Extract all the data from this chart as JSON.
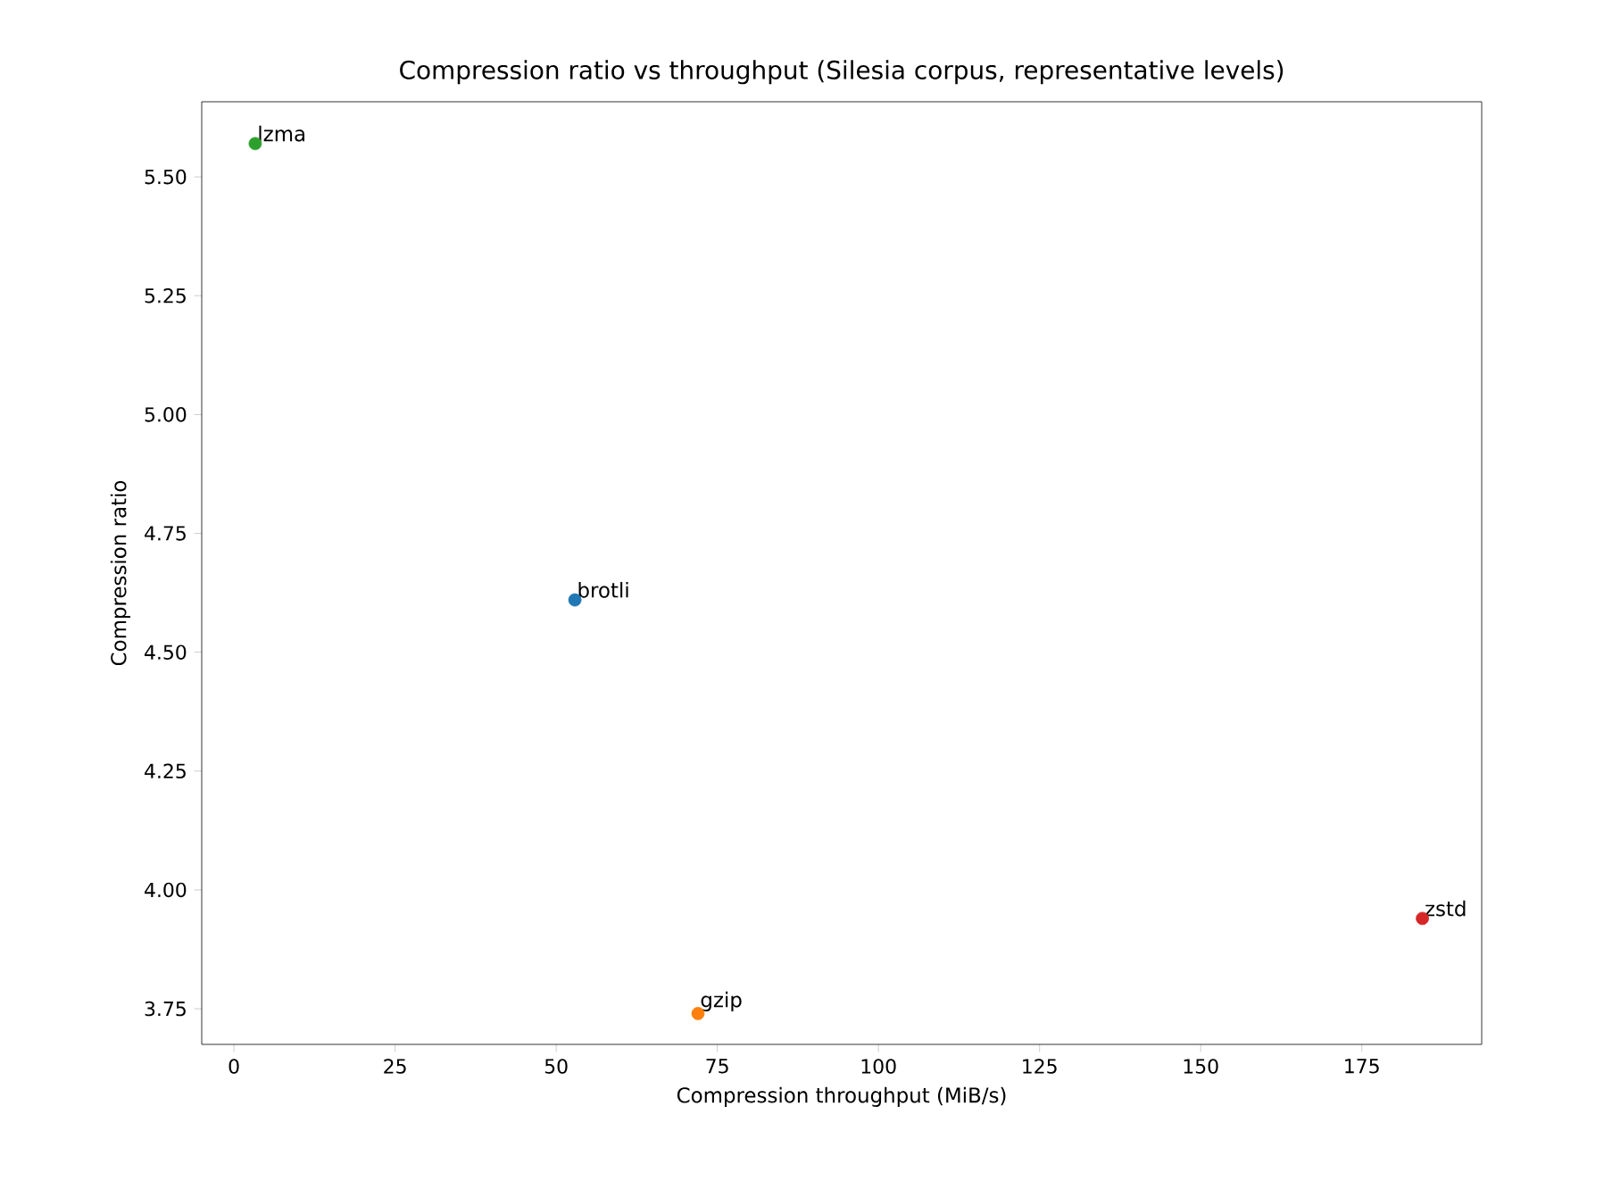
{
  "chart_data": {
    "type": "scatter",
    "title": "Compression ratio vs throughput (Silesia corpus, representative levels)",
    "xlabel": "Compression throughput (MiB/s)",
    "ylabel": "Compression ratio",
    "series": [
      {
        "name": "brotli",
        "color": "#1f77b4",
        "x": [
          52.9
        ],
        "values": [
          4.61
        ]
      },
      {
        "name": "gzip",
        "color": "#ff7f0e",
        "x": [
          72
        ],
        "values": [
          3.74
        ]
      },
      {
        "name": "lzma",
        "color": "#2ca02c",
        "x": [
          3.3
        ],
        "values": [
          5.57
        ]
      },
      {
        "name": "zstd",
        "color": "#d62728",
        "x": [
          184.4
        ],
        "values": [
          3.94
        ]
      }
    ],
    "xlim": [
      -5,
      193.6
    ],
    "ylim": [
      3.675,
      5.658
    ],
    "xticks": [
      0,
      25,
      50,
      75,
      100,
      125,
      150,
      175
    ],
    "yticks": [
      3.75,
      {
        "value": 4,
        "label": "4.00"
      },
      4.25,
      {
        "value": 4.5,
        "label": "4.50"
      },
      4.75,
      {
        "value": 5,
        "label": "5.00"
      },
      5.25,
      {
        "value": 5.5,
        "label": "5.50"
      }
    ]
  }
}
